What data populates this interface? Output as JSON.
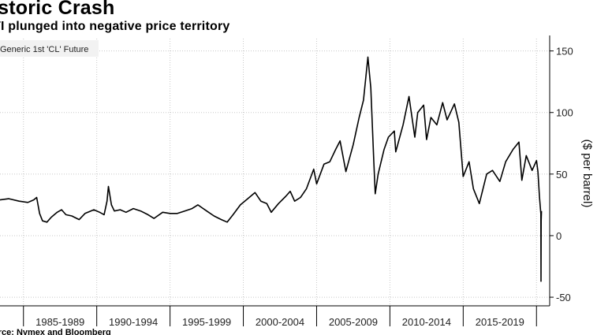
{
  "chart_data": {
    "type": "line",
    "title": "istoric Crash",
    "subtitle": "TI plunged into negative price territory",
    "source": "urce: Nymex and Bloomberg",
    "legend": "Generic 1st 'CL' Future",
    "ylabel": "($ per barrel)",
    "xlabel": "",
    "x_range": [
      1983.4,
      2020.9
    ],
    "ylim": [
      -57,
      160
    ],
    "y_ticks": [
      150,
      100,
      50,
      0,
      -50
    ],
    "x_tick_labels": [
      "1985-1989",
      "1990-1994",
      "1995-1999",
      "2000-2004",
      "2005-2009",
      "2010-2014",
      "2015-2019"
    ],
    "x_tick_positions": [
      1985,
      1990,
      1995,
      2000,
      2005,
      2010,
      2015,
      2020
    ],
    "grid": true,
    "series": [
      {
        "name": "Generic 1st 'CL' Future",
        "points": [
          [
            1983.4,
            29
          ],
          [
            1984.0,
            30
          ],
          [
            1984.7,
            28
          ],
          [
            1985.3,
            27
          ],
          [
            1985.7,
            29
          ],
          [
            1985.9,
            31
          ],
          [
            1986.1,
            18
          ],
          [
            1986.3,
            12
          ],
          [
            1986.6,
            11
          ],
          [
            1986.9,
            15
          ],
          [
            1987.3,
            19
          ],
          [
            1987.6,
            21
          ],
          [
            1987.9,
            17
          ],
          [
            1988.3,
            16
          ],
          [
            1988.8,
            13
          ],
          [
            1989.2,
            18
          ],
          [
            1989.8,
            21
          ],
          [
            1990.2,
            19
          ],
          [
            1990.5,
            17
          ],
          [
            1990.7,
            28
          ],
          [
            1990.8,
            40
          ],
          [
            1991.0,
            25
          ],
          [
            1991.2,
            20
          ],
          [
            1991.6,
            21
          ],
          [
            1992.0,
            19
          ],
          [
            1992.5,
            22
          ],
          [
            1993.0,
            20
          ],
          [
            1993.5,
            17
          ],
          [
            1993.9,
            14
          ],
          [
            1994.5,
            19
          ],
          [
            1995.0,
            18
          ],
          [
            1995.5,
            18
          ],
          [
            1996.0,
            20
          ],
          [
            1996.5,
            22
          ],
          [
            1996.9,
            25
          ],
          [
            1997.5,
            20
          ],
          [
            1998.0,
            16
          ],
          [
            1998.5,
            13
          ],
          [
            1998.9,
            11
          ],
          [
            1999.3,
            17
          ],
          [
            1999.8,
            25
          ],
          [
            2000.3,
            30
          ],
          [
            2000.8,
            35
          ],
          [
            2001.2,
            28
          ],
          [
            2001.6,
            26
          ],
          [
            2001.9,
            19
          ],
          [
            2002.4,
            26
          ],
          [
            2002.9,
            32
          ],
          [
            2003.2,
            36
          ],
          [
            2003.5,
            28
          ],
          [
            2003.9,
            31
          ],
          [
            2004.3,
            38
          ],
          [
            2004.8,
            54
          ],
          [
            2005.0,
            42
          ],
          [
            2005.5,
            58
          ],
          [
            2005.9,
            60
          ],
          [
            2006.3,
            70
          ],
          [
            2006.6,
            77
          ],
          [
            2007.0,
            52
          ],
          [
            2007.5,
            74
          ],
          [
            2007.9,
            96
          ],
          [
            2008.2,
            110
          ],
          [
            2008.5,
            145
          ],
          [
            2008.7,
            120
          ],
          [
            2008.9,
            60
          ],
          [
            2009.0,
            34
          ],
          [
            2009.2,
            50
          ],
          [
            2009.6,
            70
          ],
          [
            2009.9,
            80
          ],
          [
            2010.3,
            85
          ],
          [
            2010.4,
            68
          ],
          [
            2010.9,
            90
          ],
          [
            2011.3,
            113
          ],
          [
            2011.7,
            80
          ],
          [
            2011.9,
            100
          ],
          [
            2012.3,
            106
          ],
          [
            2012.5,
            78
          ],
          [
            2012.8,
            96
          ],
          [
            2013.2,
            90
          ],
          [
            2013.6,
            108
          ],
          [
            2013.9,
            94
          ],
          [
            2014.4,
            107
          ],
          [
            2014.7,
            92
          ],
          [
            2015.0,
            48
          ],
          [
            2015.4,
            60
          ],
          [
            2015.7,
            38
          ],
          [
            2016.1,
            26
          ],
          [
            2016.6,
            50
          ],
          [
            2017.0,
            53
          ],
          [
            2017.5,
            44
          ],
          [
            2017.9,
            60
          ],
          [
            2018.4,
            70
          ],
          [
            2018.8,
            76
          ],
          [
            2019.0,
            45
          ],
          [
            2019.3,
            65
          ],
          [
            2019.7,
            53
          ],
          [
            2020.0,
            61
          ],
          [
            2020.1,
            52
          ],
          [
            2020.2,
            32
          ],
          [
            2020.28,
            20
          ],
          [
            2020.3,
            18
          ],
          [
            2020.31,
            -37
          ],
          [
            2020.32,
            12
          ],
          [
            2020.34,
            20
          ]
        ]
      }
    ],
    "colors": {
      "line": "#000000",
      "grid": "#c8c8c8",
      "axis": "#000000",
      "legend_bg": "#f2f2f2"
    }
  }
}
